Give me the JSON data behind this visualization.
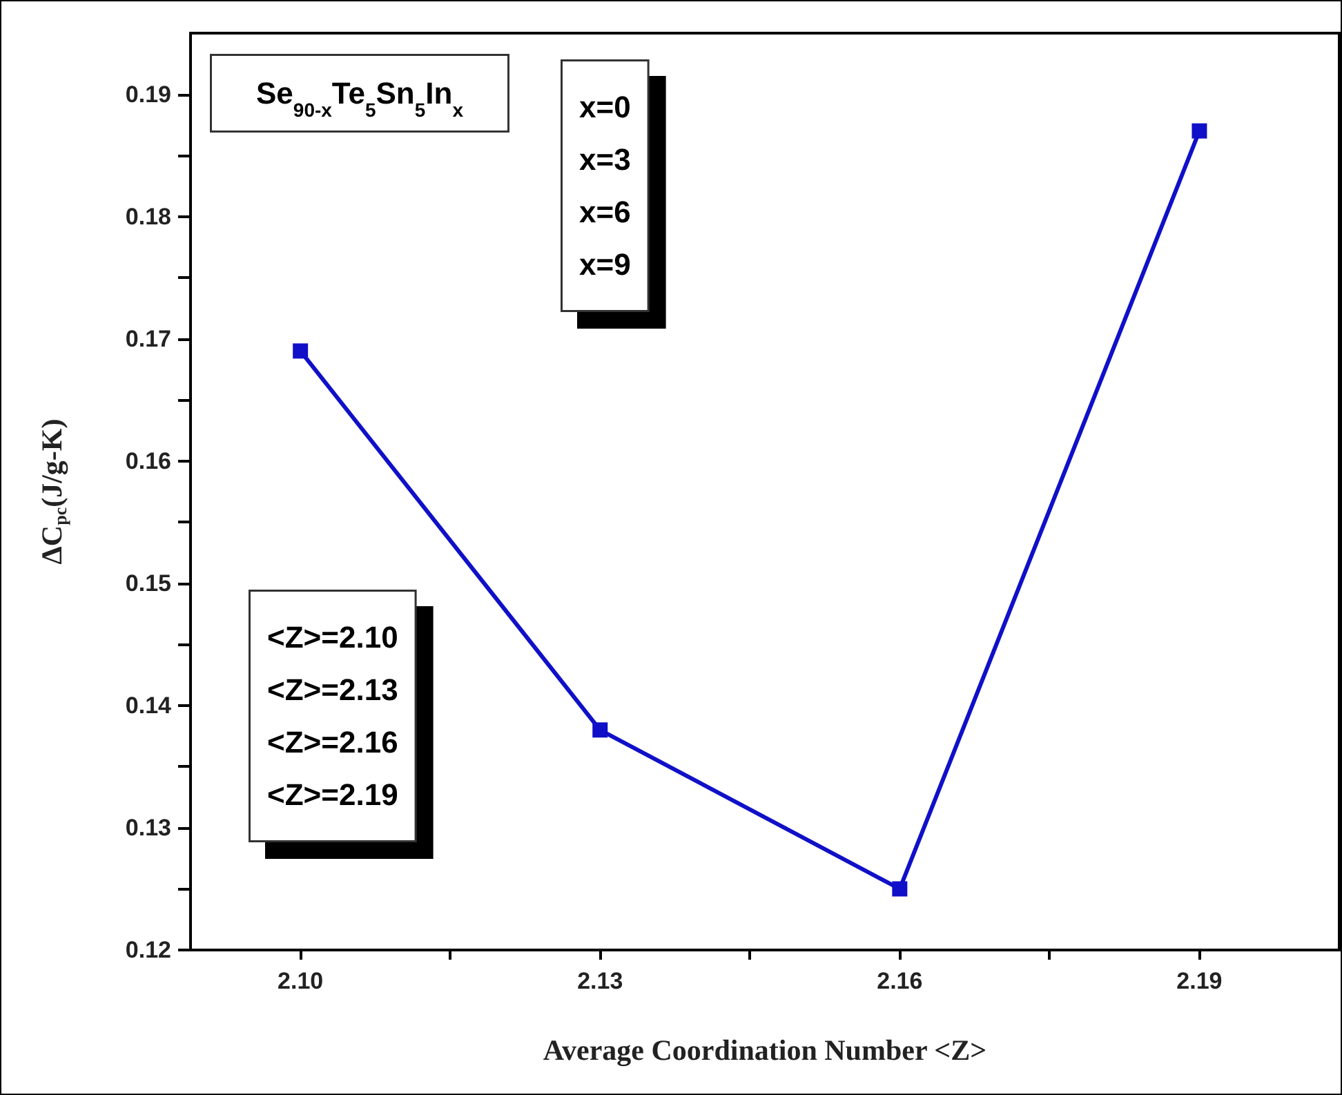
{
  "chart_data": {
    "type": "line",
    "xlabel": "Average Coordination Number <Z>",
    "ylabel": "ΔC$_{pc}$(J/g-K)",
    "x": [
      2.1,
      2.13,
      2.16,
      2.19
    ],
    "series": [
      {
        "color": "#1010c8",
        "values": [
          0.169,
          0.138,
          0.125,
          0.187
        ]
      }
    ],
    "xlim": [
      2.089,
      2.204
    ],
    "xticks": [
      {
        "value": 2.1,
        "label": "2.10"
      },
      {
        "value": 2.115,
        "label": null
      },
      {
        "value": 2.13,
        "label": "2.13"
      },
      {
        "value": 2.145,
        "label": null
      },
      {
        "value": 2.16,
        "label": "2.16"
      },
      {
        "value": 2.175,
        "label": null
      },
      {
        "value": 2.19,
        "label": "2.19"
      }
    ],
    "ylim": [
      0.12,
      0.195
    ],
    "yticks": [
      {
        "value": 0.12,
        "label": "0.12"
      },
      {
        "value": 0.125,
        "label": null
      },
      {
        "value": 0.13,
        "label": "0.13"
      },
      {
        "value": 0.135,
        "label": null
      },
      {
        "value": 0.14,
        "label": "0.14"
      },
      {
        "value": 0.145,
        "label": null
      },
      {
        "value": 0.15,
        "label": "0.15"
      },
      {
        "value": 0.155,
        "label": null
      },
      {
        "value": 0.16,
        "label": "0.16"
      },
      {
        "value": 0.165,
        "label": null
      },
      {
        "value": 0.17,
        "label": "0.17"
      },
      {
        "value": 0.175,
        "label": null
      },
      {
        "value": 0.18,
        "label": "0.18"
      },
      {
        "value": 0.185,
        "label": null
      },
      {
        "value": 0.19,
        "label": "0.19"
      }
    ],
    "annotations": [
      "Se$_{90-x}$Te$_{5}$Sn$_{5}$In$_{x}$",
      "x=0\nx=3\nx=6\nx=9",
      "<Z>=2.10\n<Z>=2.13\n<Z>=2.16\n<Z>=2.19"
    ],
    "marker": "square",
    "line_style": "solid",
    "grid": false
  }
}
